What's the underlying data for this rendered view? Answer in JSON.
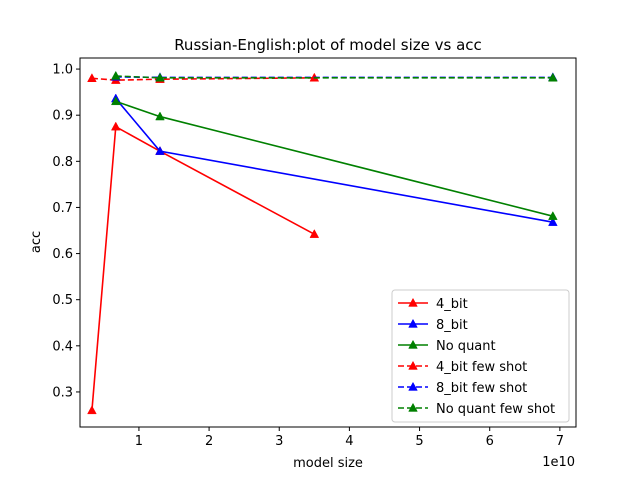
{
  "chart_data": {
    "type": "line",
    "title": "Russian-English:plot of model size vs acc",
    "xlabel": "model size",
    "ylabel": "acc",
    "x_offset_label": "1e10",
    "xlim": [
      1600000000.0,
      72300000000.0
    ],
    "ylim": [
      0.224,
      1.024
    ],
    "xticks": [
      {
        "value": 10000000000.0,
        "label": "1"
      },
      {
        "value": 20000000000.0,
        "label": "2"
      },
      {
        "value": 30000000000.0,
        "label": "3"
      },
      {
        "value": 40000000000.0,
        "label": "4"
      },
      {
        "value": 50000000000.0,
        "label": "5"
      },
      {
        "value": 60000000000.0,
        "label": "6"
      },
      {
        "value": 70000000000.0,
        "label": "7"
      }
    ],
    "yticks": [
      {
        "value": 0.3,
        "label": "0.3"
      },
      {
        "value": 0.4,
        "label": "0.4"
      },
      {
        "value": 0.5,
        "label": "0.5"
      },
      {
        "value": 0.6,
        "label": "0.6"
      },
      {
        "value": 0.7,
        "label": "0.7"
      },
      {
        "value": 0.8,
        "label": "0.8"
      },
      {
        "value": 0.9,
        "label": "0.9"
      },
      {
        "value": 1.0,
        "label": "1.0"
      }
    ],
    "legend_position": "lower right",
    "grid": false,
    "series": [
      {
        "name": "4_bit",
        "color": "#ff0000",
        "dashed": false,
        "marker": "triangle",
        "x": [
          3300000000.0,
          6700000000.0,
          13000000000.0,
          35000000000.0
        ],
        "y": [
          0.26,
          0.875,
          0.822,
          0.642
        ]
      },
      {
        "name": "8_bit",
        "color": "#0000ff",
        "dashed": false,
        "marker": "triangle",
        "x": [
          6700000000.0,
          13000000000.0,
          69000000000.0
        ],
        "y": [
          0.936,
          0.822,
          0.668
        ]
      },
      {
        "name": "No quant",
        "color": "#008000",
        "dashed": false,
        "marker": "triangle",
        "x": [
          6700000000.0,
          13000000000.0,
          69000000000.0
        ],
        "y": [
          0.93,
          0.897,
          0.681
        ]
      },
      {
        "name": "4_bit few shot",
        "color": "#ff0000",
        "dashed": true,
        "marker": "triangle",
        "x": [
          3300000000.0,
          6700000000.0,
          13000000000.0,
          35000000000.0
        ],
        "y": [
          0.98,
          0.976,
          0.978,
          0.981
        ]
      },
      {
        "name": "8_bit few shot",
        "color": "#0000ff",
        "dashed": true,
        "marker": "triangle",
        "x": [
          6700000000.0,
          13000000000.0,
          69000000000.0
        ],
        "y": [
          0.983,
          0.982,
          0.982
        ]
      },
      {
        "name": "No quant few shot",
        "color": "#008000",
        "dashed": true,
        "marker": "triangle",
        "x": [
          6700000000.0,
          13000000000.0,
          69000000000.0
        ],
        "y": [
          0.985,
          0.981,
          0.981
        ]
      }
    ]
  }
}
